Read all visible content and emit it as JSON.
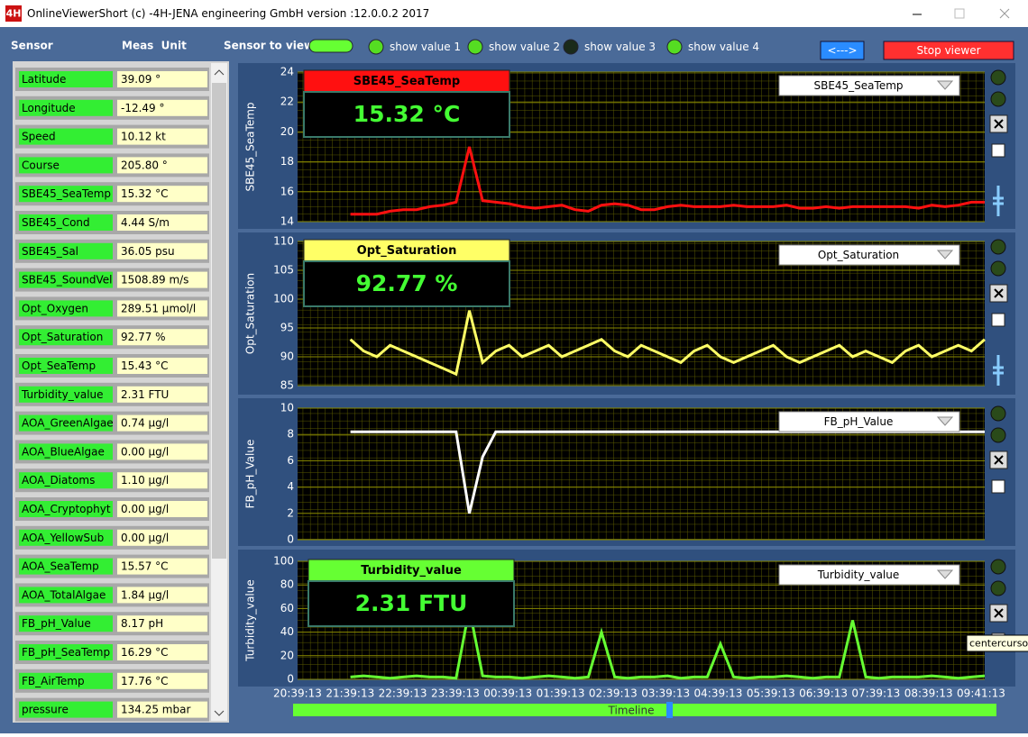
{
  "window": {
    "icon": "4H",
    "title": "OnlineViewerShort (c) -4H-JENA engineering GmbH version :12.0.0.2   2017"
  },
  "toolbar": {
    "sensor_header": "Sensor",
    "unit_header": "Meas  Unit",
    "sensor_to_view": "Sensor to view",
    "toggles": [
      "show value 1",
      "show value 2",
      "show value 3",
      "show value 4"
    ],
    "arrow_button": "<--->",
    "stop_button": "Stop viewer"
  },
  "sensors": [
    {
      "name": "Latitude",
      "value": "39.09 °"
    },
    {
      "name": "Longitude",
      "value": "-12.49 °"
    },
    {
      "name": "Speed",
      "value": "10.12 kt"
    },
    {
      "name": "Course",
      "value": "205.80 °"
    },
    {
      "name": "SBE45_SeaTemp",
      "value": "15.32 °C"
    },
    {
      "name": "SBE45_Cond",
      "value": "4.44 S/m"
    },
    {
      "name": "SBE45_Sal",
      "value": "36.05 psu"
    },
    {
      "name": "SBE45_SoundVel",
      "value": "1508.89 m/s"
    },
    {
      "name": "Opt_Oxygen",
      "value": "289.51 µmol/l"
    },
    {
      "name": "Opt_Saturation",
      "value": "92.77 %"
    },
    {
      "name": "Opt_SeaTemp",
      "value": "15.43 °C"
    },
    {
      "name": "Turbidity_value",
      "value": "2.31 FTU"
    },
    {
      "name": "AOA_GreenAlgae",
      "value": "0.74 µg/l"
    },
    {
      "name": "AOA_BlueAlgae",
      "value": "0.00 µg/l"
    },
    {
      "name": "AOA_Diatoms",
      "value": "1.10 µg/l"
    },
    {
      "name": "AOA_Cryptophyt",
      "value": "0.00 µg/l"
    },
    {
      "name": "AOA_YellowSub",
      "value": "0.00 µg/l"
    },
    {
      "name": "AOA_SeaTemp",
      "value": "15.57 °C"
    },
    {
      "name": "AOA_TotalAlgae",
      "value": "1.84 µg/l"
    },
    {
      "name": "FB_pH_Value",
      "value": "8.17 pH"
    },
    {
      "name": "FB_pH_SeaTemp",
      "value": "16.29 °C"
    },
    {
      "name": "FB_AirTemp",
      "value": "17.76 °C"
    },
    {
      "name": "pressure",
      "value": "134.25 mbar"
    }
  ],
  "charts": [
    {
      "ylabel": "SBE45_SeaTemp",
      "selector": "SBE45_SeaTemp",
      "color": "#ff1010",
      "ylim": [
        14,
        24
      ],
      "yticks": [
        14,
        16,
        18,
        20,
        22,
        24
      ],
      "display": {
        "name": "SBE45_SeaTemp",
        "value": "15.32 °C"
      },
      "values": [
        null,
        null,
        null,
        null,
        14.5,
        14.5,
        14.5,
        14.7,
        14.8,
        14.8,
        15.0,
        15.1,
        15.3,
        19.0,
        15.4,
        15.3,
        15.2,
        15.0,
        14.9,
        15.0,
        15.1,
        14.8,
        14.7,
        15.1,
        15.2,
        15.1,
        14.8,
        14.8,
        15.0,
        15.1,
        15.0,
        15.0,
        15.0,
        15.1,
        15.0,
        15.0,
        15.0,
        15.1,
        14.9,
        14.9,
        15.0,
        14.9,
        15.0,
        15.0,
        15.0,
        15.0,
        15.0,
        14.9,
        15.1,
        15.0,
        15.1,
        15.3,
        15.3
      ]
    },
    {
      "ylabel": "Opt_Saturation",
      "selector": "Opt_Saturation",
      "color": "#ffff66",
      "ylim": [
        85,
        110
      ],
      "yticks": [
        85,
        90,
        95,
        100,
        105,
        110
      ],
      "display": {
        "name": "Opt_Saturation",
        "value": "92.77 %"
      },
      "values": [
        null,
        null,
        null,
        null,
        93,
        91,
        90,
        92,
        91,
        90,
        89,
        88,
        87,
        98,
        89,
        91,
        92,
        90,
        91,
        92,
        90,
        91,
        92,
        93,
        91,
        90,
        92,
        91,
        90,
        89,
        91,
        92,
        90,
        89,
        90,
        91,
        92,
        90,
        89,
        90,
        91,
        92,
        90,
        91,
        90,
        89,
        91,
        92,
        90,
        91,
        92,
        91,
        93
      ]
    },
    {
      "ylabel": "FB_pH_Value",
      "selector": "FB_pH_Value",
      "color": "#ffffff",
      "ylim": [
        0,
        10
      ],
      "yticks": [
        0,
        2,
        4,
        6,
        8,
        10
      ],
      "values": [
        null,
        null,
        null,
        null,
        8.2,
        8.2,
        8.2,
        8.2,
        8.2,
        8.2,
        8.2,
        8.2,
        8.2,
        2.0,
        6.3,
        8.2,
        8.2,
        8.2,
        8.2,
        8.2,
        8.2,
        8.2,
        8.2,
        8.2,
        8.2,
        8.2,
        8.2,
        8.2,
        8.2,
        8.2,
        8.2,
        8.2,
        8.2,
        8.2,
        8.2,
        8.2,
        8.2,
        8.2,
        8.2,
        8.2,
        8.2,
        8.2,
        8.2,
        8.2,
        8.2,
        8.2,
        8.2,
        8.2,
        8.2,
        8.2,
        8.2,
        8.2,
        8.2
      ]
    },
    {
      "ylabel": "Turbidity_value",
      "selector": "Turbidity_value",
      "color": "#66ff33",
      "ylim": [
        0,
        100
      ],
      "yticks": [
        0,
        20,
        40,
        60,
        80,
        100
      ],
      "display": {
        "name": "Turbidity_value",
        "value": "2.31 FTU"
      },
      "values": [
        null,
        null,
        null,
        null,
        2,
        3,
        2,
        1,
        2,
        3,
        2,
        2,
        1,
        60,
        3,
        2,
        2,
        1,
        2,
        3,
        2,
        1,
        2,
        40,
        2,
        1,
        2,
        2,
        3,
        1,
        2,
        2,
        30,
        2,
        1,
        2,
        2,
        3,
        2,
        1,
        2,
        2,
        50,
        2,
        1,
        2,
        2,
        2,
        3,
        2,
        1,
        2,
        3
      ]
    }
  ],
  "time_axis": {
    "labels": [
      "20:39:13",
      "21:39:13",
      "22:39:13",
      "23:39:13",
      "00:39:13",
      "01:39:13",
      "02:39:13",
      "03:39:13",
      "04:39:13",
      "05:39:13",
      "06:39:13",
      "07:39:13",
      "08:39:13",
      "09:41:13"
    ],
    "slider": "Timeline"
  },
  "tooltip": "centercursor"
}
